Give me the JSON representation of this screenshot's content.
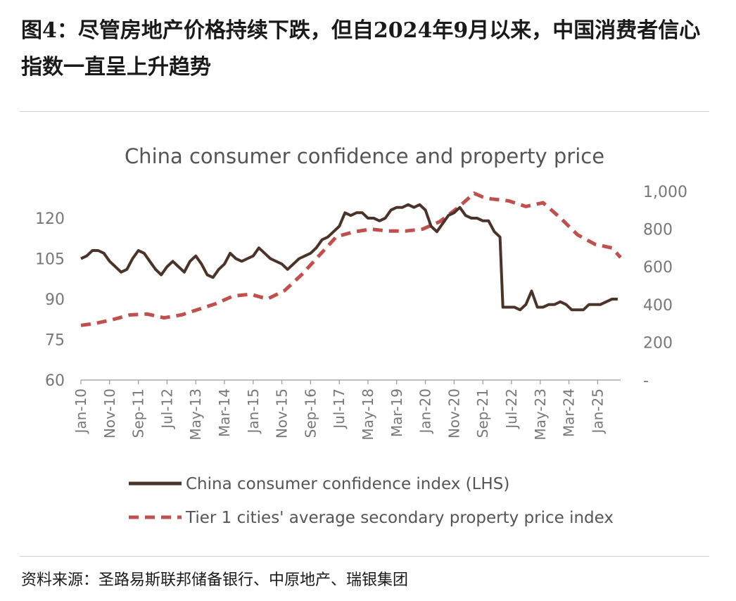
{
  "figure": {
    "title": "图4：尽管房地产价格持续下跌，但自2024年9月以来，中国消费者信心指数一直呈上升趋势",
    "source": "资料来源：圣路易斯联邦储备银行、中原地产、瑞银集团"
  },
  "chart_data": {
    "type": "line",
    "title": "China consumer confidence and property price",
    "x_range": [
      "2010-01",
      "2025-09"
    ],
    "x_tick_labels": [
      "Jan-10",
      "Nov-10",
      "Sep-11",
      "Jul-12",
      "May-13",
      "Mar-14",
      "Jan-15",
      "Nov-15",
      "Sep-16",
      "Jul-17",
      "May-18",
      "Mar-19",
      "Jan-20",
      "Nov-20",
      "Sep-21",
      "Jul-22",
      "May-23",
      "Mar-24",
      "Jan-25"
    ],
    "y_left": {
      "ylim": [
        60,
        120
      ],
      "ticks": [
        "60",
        "75",
        "90",
        "105",
        "120"
      ]
    },
    "y_right": {
      "ylim": [
        0,
        1000
      ],
      "ticks": [
        "-",
        "200",
        "400",
        "600",
        "800",
        "1,000"
      ]
    },
    "grid": false,
    "legend_position": "bottom",
    "series": [
      {
        "name": "China consumer confidence index (LHS)",
        "axis": "left",
        "color": "#4a3328",
        "style": "solid",
        "points": [
          [
            "2010-01",
            105
          ],
          [
            "2010-03",
            106
          ],
          [
            "2010-05",
            108
          ],
          [
            "2010-07",
            108
          ],
          [
            "2010-09",
            107
          ],
          [
            "2010-11",
            104
          ],
          [
            "2011-01",
            102
          ],
          [
            "2011-03",
            100
          ],
          [
            "2011-05",
            101
          ],
          [
            "2011-07",
            105
          ],
          [
            "2011-09",
            108
          ],
          [
            "2011-11",
            107
          ],
          [
            "2012-01",
            104
          ],
          [
            "2012-03",
            101
          ],
          [
            "2012-05",
            99
          ],
          [
            "2012-07",
            102
          ],
          [
            "2012-09",
            104
          ],
          [
            "2012-11",
            102
          ],
          [
            "2013-01",
            100
          ],
          [
            "2013-03",
            104
          ],
          [
            "2013-05",
            106
          ],
          [
            "2013-07",
            103
          ],
          [
            "2013-09",
            99
          ],
          [
            "2013-11",
            98
          ],
          [
            "2014-01",
            101
          ],
          [
            "2014-03",
            103
          ],
          [
            "2014-05",
            107
          ],
          [
            "2014-07",
            105
          ],
          [
            "2014-09",
            104
          ],
          [
            "2014-11",
            105
          ],
          [
            "2015-01",
            106
          ],
          [
            "2015-03",
            109
          ],
          [
            "2015-05",
            107
          ],
          [
            "2015-07",
            105
          ],
          [
            "2015-09",
            104
          ],
          [
            "2015-11",
            103
          ],
          [
            "2016-01",
            101
          ],
          [
            "2016-03",
            103
          ],
          [
            "2016-05",
            105
          ],
          [
            "2016-07",
            106
          ],
          [
            "2016-09",
            107
          ],
          [
            "2016-11",
            109
          ],
          [
            "2017-01",
            112
          ],
          [
            "2017-03",
            113
          ],
          [
            "2017-05",
            115
          ],
          [
            "2017-07",
            117
          ],
          [
            "2017-09",
            122
          ],
          [
            "2017-11",
            121
          ],
          [
            "2018-01",
            122
          ],
          [
            "2018-03",
            122
          ],
          [
            "2018-05",
            120
          ],
          [
            "2018-07",
            120
          ],
          [
            "2018-09",
            119
          ],
          [
            "2018-11",
            120
          ],
          [
            "2019-01",
            123
          ],
          [
            "2019-03",
            124
          ],
          [
            "2019-05",
            124
          ],
          [
            "2019-07",
            125
          ],
          [
            "2019-09",
            124
          ],
          [
            "2019-11",
            125
          ],
          [
            "2020-01",
            123
          ],
          [
            "2020-03",
            117
          ],
          [
            "2020-05",
            115
          ],
          [
            "2020-07",
            118
          ],
          [
            "2020-09",
            121
          ],
          [
            "2020-11",
            122
          ],
          [
            "2021-01",
            124
          ],
          [
            "2021-03",
            121
          ],
          [
            "2021-05",
            120
          ],
          [
            "2021-07",
            120
          ],
          [
            "2021-09",
            119
          ],
          [
            "2021-11",
            119
          ],
          [
            "2022-01",
            115
          ],
          [
            "2022-03",
            113
          ],
          [
            "2022-04",
            87
          ],
          [
            "2022-06",
            87
          ],
          [
            "2022-08",
            87
          ],
          [
            "2022-10",
            86
          ],
          [
            "2022-12",
            88
          ],
          [
            "2023-02",
            93
          ],
          [
            "2023-04",
            87
          ],
          [
            "2023-06",
            87
          ],
          [
            "2023-08",
            88
          ],
          [
            "2023-10",
            88
          ],
          [
            "2023-12",
            89
          ],
          [
            "2024-02",
            88
          ],
          [
            "2024-04",
            86
          ],
          [
            "2024-06",
            86
          ],
          [
            "2024-08",
            86
          ],
          [
            "2024-10",
            88
          ],
          [
            "2024-12",
            88
          ],
          [
            "2025-02",
            88
          ],
          [
            "2025-04",
            89
          ],
          [
            "2025-06",
            90
          ],
          [
            "2025-08",
            90
          ]
        ]
      },
      {
        "name": "Tier 1 cities' average secondary property price index",
        "axis": "right",
        "color": "#c0504d",
        "style": "dashed",
        "points": [
          [
            "2010-01",
            290
          ],
          [
            "2010-06",
            300
          ],
          [
            "2010-12",
            320
          ],
          [
            "2011-06",
            345
          ],
          [
            "2011-12",
            350
          ],
          [
            "2012-06",
            330
          ],
          [
            "2012-12",
            345
          ],
          [
            "2013-06",
            375
          ],
          [
            "2013-12",
            405
          ],
          [
            "2014-06",
            445
          ],
          [
            "2014-12",
            455
          ],
          [
            "2015-06",
            430
          ],
          [
            "2015-12",
            475
          ],
          [
            "2016-06",
            560
          ],
          [
            "2016-12",
            660
          ],
          [
            "2017-06",
            760
          ],
          [
            "2017-12",
            785
          ],
          [
            "2018-06",
            800
          ],
          [
            "2018-12",
            790
          ],
          [
            "2019-06",
            790
          ],
          [
            "2019-12",
            800
          ],
          [
            "2020-06",
            840
          ],
          [
            "2020-12",
            910
          ],
          [
            "2021-06",
            990
          ],
          [
            "2021-09",
            970
          ],
          [
            "2021-12",
            960
          ],
          [
            "2022-06",
            950
          ],
          [
            "2022-12",
            920
          ],
          [
            "2023-06",
            940
          ],
          [
            "2023-12",
            860
          ],
          [
            "2024-06",
            770
          ],
          [
            "2024-12",
            720
          ],
          [
            "2025-06",
            700
          ],
          [
            "2025-09",
            650
          ]
        ]
      }
    ]
  }
}
